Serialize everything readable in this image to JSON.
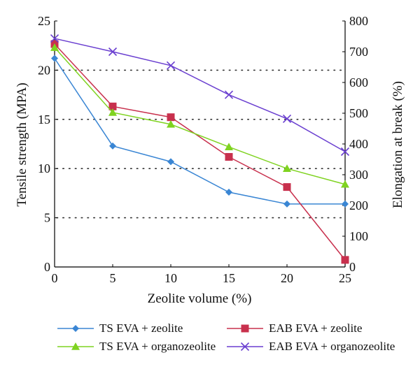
{
  "chart_data": {
    "type": "line",
    "title": "",
    "xlabel": "Zeolite volume (%)",
    "ylabel_left": "Tensile strength (MPA)",
    "ylabel_right": "Elongation at break (%)",
    "x": [
      0,
      5,
      10,
      15,
      20,
      25
    ],
    "x_ticks": [
      "0",
      "5",
      "10",
      "15",
      "20",
      "25"
    ],
    "xlim": [
      0,
      25
    ],
    "ylim_left": [
      0,
      25
    ],
    "ylim_right": [
      0,
      800
    ],
    "left_ticks": [
      "0",
      "5",
      "10",
      "15",
      "20",
      "25"
    ],
    "right_ticks": [
      "0",
      "100",
      "200",
      "300",
      "400",
      "500",
      "600",
      "700",
      "800"
    ],
    "grid": "dotted horizontal lines at left-axis values 5, 10, 15, 20",
    "legend_position": "bottom",
    "series": [
      {
        "name": "TS EVA + zeolite",
        "axis": "left",
        "color": "#3a86d4",
        "marker": "diamond",
        "values": [
          21.2,
          12.3,
          10.7,
          7.6,
          6.4,
          6.4
        ]
      },
      {
        "name": "EAB EVA + zeolite",
        "axis": "right",
        "color": "#c8304d",
        "marker": "square",
        "values": [
          725,
          522,
          487,
          358,
          260,
          23
        ]
      },
      {
        "name": "TS EVA + organozeolite",
        "axis": "left",
        "color": "#7fd320",
        "marker": "triangle",
        "values": [
          22.3,
          15.7,
          14.5,
          12.2,
          10.0,
          8.4
        ]
      },
      {
        "name": "EAB EVA + organozeolite",
        "axis": "right",
        "color": "#6a3fd0",
        "marker": "cross",
        "values": [
          743,
          700,
          655,
          560,
          482,
          375
        ]
      }
    ]
  }
}
